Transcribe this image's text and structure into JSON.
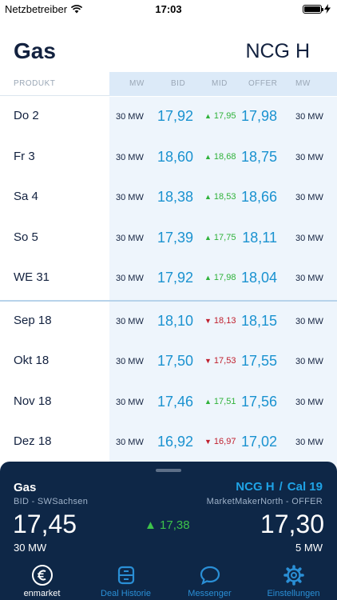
{
  "status_bar": {
    "carrier": "Netzbetreiber",
    "time": "17:03"
  },
  "header": {
    "title": "Gas",
    "market": "NCG H"
  },
  "columns": {
    "product": "PRODUKT",
    "mw_bid": "MW",
    "bid": "BID",
    "mid": "MID",
    "offer": "OFFER",
    "mw_offer": "MW"
  },
  "rows": [
    {
      "product": "Do 2",
      "mw_bid": "30 MW",
      "bid": "17,92",
      "mid": "17,95",
      "mid_dir": "up",
      "offer": "17,98",
      "mw_offer": "30 MW"
    },
    {
      "product": "Fr 3",
      "mw_bid": "30 MW",
      "bid": "18,60",
      "mid": "18,68",
      "mid_dir": "up",
      "offer": "18,75",
      "mw_offer": "30 MW"
    },
    {
      "product": "Sa 4",
      "mw_bid": "30 MW",
      "bid": "18,38",
      "mid": "18,53",
      "mid_dir": "up",
      "offer": "18,66",
      "mw_offer": "30 MW"
    },
    {
      "product": "So 5",
      "mw_bid": "30 MW",
      "bid": "17,39",
      "mid": "17,75",
      "mid_dir": "up",
      "offer": "18,11",
      "mw_offer": "30 MW"
    },
    {
      "product": "WE 31",
      "mw_bid": "30 MW",
      "bid": "17,92",
      "mid": "17,98",
      "mid_dir": "up",
      "offer": "18,04",
      "mw_offer": "30 MW"
    },
    {
      "product": "Sep 18",
      "mw_bid": "30 MW",
      "bid": "18,10",
      "mid": "18,13",
      "mid_dir": "down",
      "offer": "18,15",
      "mw_offer": "30 MW"
    },
    {
      "product": "Okt 18",
      "mw_bid": "30 MW",
      "bid": "17,50",
      "mid": "17,53",
      "mid_dir": "down",
      "offer": "17,55",
      "mw_offer": "30 MW"
    },
    {
      "product": "Nov 18",
      "mw_bid": "30 MW",
      "bid": "17,46",
      "mid": "17,51",
      "mid_dir": "up",
      "offer": "17,56",
      "mw_offer": "30 MW"
    },
    {
      "product": "Dez 18",
      "mw_bid": "30 MW",
      "bid": "16,92",
      "mid": "16,97",
      "mid_dir": "down",
      "offer": "17,02",
      "mw_offer": "30 MW"
    }
  ],
  "colors": {
    "navy": "#0e2747",
    "accent": "#1a92d0",
    "up": "#2fb23a",
    "down": "#c0202e"
  },
  "panel": {
    "title": "Gas",
    "market": "NCG H",
    "separator": "/",
    "product": "Cal 19",
    "bid_source": "BID - SWSachsen",
    "offer_source": "MarketMakerNorth - OFFER",
    "bid": "17,45",
    "mid": "17,38",
    "mid_dir": "up",
    "offer": "17,30",
    "bid_mw": "30 MW",
    "offer_mw": "5 MW"
  },
  "tabs": [
    {
      "label": "enmarket",
      "icon": "euro-icon",
      "active": true
    },
    {
      "label": "Deal Historie",
      "icon": "history-icon",
      "active": false
    },
    {
      "label": "Messenger",
      "icon": "chat-bubble-icon",
      "active": false
    },
    {
      "label": "Einstellungen",
      "icon": "gear-icon",
      "active": false
    }
  ]
}
